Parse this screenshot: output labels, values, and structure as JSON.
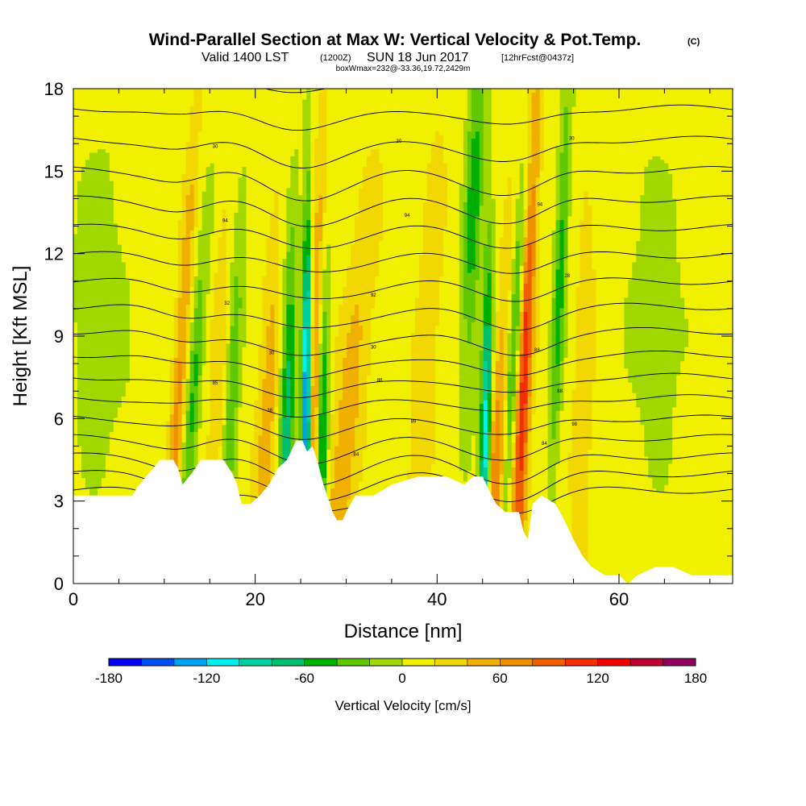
{
  "header": {
    "title": "Wind-Parallel Section at Max W: Vertical Velocity & Pot.Temp.",
    "copyright": "(C)",
    "valid_prefix": "Valid 1400 LST",
    "valid_z": "(1200Z)",
    "valid_date": "SUN 18 Jun 2017",
    "forecast": "[12hrFcst@0437z]",
    "box_info": "boxWmax=232@-33.36,19.72,2429m"
  },
  "colors": {
    "background": "#ffffff",
    "terrain": "#ffffff",
    "contour_line": "#000000"
  },
  "chart_data": {
    "type": "heatmap",
    "title": "Wind-Parallel Section at Max W: Vertical Velocity & Pot.Temp.",
    "xlabel": "Distance [nm]",
    "ylabel": "Height [Kft MSL]",
    "xlim": [
      0,
      72.5
    ],
    "ylim": [
      0,
      18
    ],
    "x_ticks": [
      0,
      20,
      40,
      60
    ],
    "y_ticks": [
      0,
      3,
      6,
      9,
      12,
      15,
      18
    ],
    "x_minor_step": 5,
    "y_minor_step": 1,
    "colorbar": {
      "label": "Vertical Velocity [cm/s]",
      "min": -180,
      "max": 180,
      "step": 20,
      "tick_values": [
        -180,
        -120,
        -60,
        0,
        60,
        120,
        180
      ],
      "tick_labels": [
        "-180",
        "-120",
        "-60",
        "0",
        "60",
        "120",
        "180"
      ],
      "colors": [
        "#0000f0",
        "#0050f0",
        "#00a0f0",
        "#00f0f0",
        "#00d0a0",
        "#00c070",
        "#00b000",
        "#60c800",
        "#a0d800",
        "#f0f000",
        "#f0d800",
        "#f0b000",
        "#f09000",
        "#f06000",
        "#f03000",
        "#f00000",
        "#c00030",
        "#900060"
      ]
    },
    "background_w": 10,
    "updrafts": [
      {
        "x": 11.5,
        "z0": 6.5,
        "tilt": 0.18,
        "sigma": 0.55,
        "amp": 55
      },
      {
        "x": 15.5,
        "z0": 4.5,
        "tilt": 0.12,
        "sigma": 0.6,
        "amp": 30
      },
      {
        "x": 21.0,
        "z0": 3.5,
        "tilt": 0.14,
        "sigma": 0.8,
        "amp": 45
      },
      {
        "x": 26.5,
        "z0": 5.0,
        "tilt": 0.08,
        "sigma": 0.55,
        "amp": 90
      },
      {
        "x": 29.5,
        "z0": 3.8,
        "tilt": 0.3,
        "sigma": 1.2,
        "amp": 45
      },
      {
        "x": 38.5,
        "z0": 7.0,
        "tilt": 0.18,
        "sigma": 0.9,
        "amp": 30
      },
      {
        "x": 46.5,
        "z0": 3.5,
        "tilt": 0.22,
        "sigma": 0.8,
        "amp": 80
      },
      {
        "x": 49.5,
        "z0": 7.5,
        "tilt": 0.12,
        "sigma": 0.6,
        "amp": 110
      },
      {
        "x": 56.0,
        "z0": 6.0,
        "tilt": 0.08,
        "sigma": 0.8,
        "amp": 25
      }
    ],
    "downdrafts": [
      {
        "x": 13.0,
        "z0": 6.0,
        "tilt": 0.22,
        "sigma": 0.55,
        "amp": 55
      },
      {
        "x": 17.5,
        "z0": 7.0,
        "tilt": 0.14,
        "sigma": 0.55,
        "amp": 45
      },
      {
        "x": 23.5,
        "z0": 6.0,
        "tilt": 0.08,
        "sigma": 0.6,
        "amp": 80
      },
      {
        "x": 25.6,
        "z0": 6.0,
        "tilt": 0.02,
        "sigma": 0.35,
        "amp": 170
      },
      {
        "x": 27.2,
        "z0": 4.5,
        "tilt": 0.05,
        "sigma": 0.5,
        "amp": 110
      },
      {
        "x": 45.3,
        "z0": 4.5,
        "tilt": 0.05,
        "sigma": 0.4,
        "amp": 130
      },
      {
        "x": 48.5,
        "z0": 9.0,
        "tilt": 0.18,
        "sigma": 0.6,
        "amp": 100
      },
      {
        "x": 44.0,
        "z0": 14.0,
        "tilt": 0.1,
        "sigma": 0.7,
        "amp": 60
      },
      {
        "x": 53.5,
        "z0": 11.0,
        "tilt": 0.12,
        "sigma": 0.5,
        "amp": 60
      },
      {
        "x": 3.0,
        "z0": 10.0,
        "tilt": 0.0,
        "sigma": 2.5,
        "amp": 20
      },
      {
        "x": 64.0,
        "z0": 10.0,
        "tilt": 0.0,
        "sigma": 2.5,
        "amp": 18
      }
    ],
    "terrain": [
      {
        "x": 0,
        "z": 3.2
      },
      {
        "x": 6.5,
        "z": 3.2
      },
      {
        "x": 7.0,
        "z": 3.5
      },
      {
        "x": 8.0,
        "z": 3.9
      },
      {
        "x": 8.8,
        "z": 4.2
      },
      {
        "x": 9.5,
        "z": 4.5
      },
      {
        "x": 11.0,
        "z": 4.5
      },
      {
        "x": 11.5,
        "z": 4.2
      },
      {
        "x": 12.0,
        "z": 3.6
      },
      {
        "x": 13.0,
        "z": 4.0
      },
      {
        "x": 14.0,
        "z": 4.5
      },
      {
        "x": 16.5,
        "z": 4.5
      },
      {
        "x": 17.5,
        "z": 4.0
      },
      {
        "x": 18.0,
        "z": 3.6
      },
      {
        "x": 18.5,
        "z": 2.9
      },
      {
        "x": 19.5,
        "z": 2.9
      },
      {
        "x": 20.5,
        "z": 3.2
      },
      {
        "x": 21.5,
        "z": 3.6
      },
      {
        "x": 22.5,
        "z": 4.2
      },
      {
        "x": 23.5,
        "z": 4.5
      },
      {
        "x": 24.5,
        "z": 5.2
      },
      {
        "x": 25.2,
        "z": 5.2
      },
      {
        "x": 25.7,
        "z": 4.8
      },
      {
        "x": 26.3,
        "z": 5.0
      },
      {
        "x": 26.8,
        "z": 4.5
      },
      {
        "x": 27.5,
        "z": 3.6
      },
      {
        "x": 28.5,
        "z": 2.6
      },
      {
        "x": 29.0,
        "z": 2.3
      },
      {
        "x": 29.6,
        "z": 2.3
      },
      {
        "x": 30.0,
        "z": 2.6
      },
      {
        "x": 31.0,
        "z": 3.2
      },
      {
        "x": 33.0,
        "z": 3.2
      },
      {
        "x": 35.0,
        "z": 3.6
      },
      {
        "x": 38.0,
        "z": 3.9
      },
      {
        "x": 41.0,
        "z": 3.9
      },
      {
        "x": 43.0,
        "z": 3.6
      },
      {
        "x": 44.0,
        "z": 3.9
      },
      {
        "x": 45.0,
        "z": 3.9
      },
      {
        "x": 46.0,
        "z": 3.2
      },
      {
        "x": 46.5,
        "z": 2.9
      },
      {
        "x": 47.5,
        "z": 2.6
      },
      {
        "x": 49.0,
        "z": 2.6
      },
      {
        "x": 49.5,
        "z": 1.9
      },
      {
        "x": 50.0,
        "z": 1.6
      },
      {
        "x": 50.5,
        "z": 2.9
      },
      {
        "x": 51.5,
        "z": 3.2
      },
      {
        "x": 53.0,
        "z": 2.9
      },
      {
        "x": 54.0,
        "z": 2.3
      },
      {
        "x": 55.0,
        "z": 1.6
      },
      {
        "x": 56.0,
        "z": 1.0
      },
      {
        "x": 57.0,
        "z": 0.6
      },
      {
        "x": 58.5,
        "z": 0.3
      },
      {
        "x": 60.0,
        "z": 0.3
      },
      {
        "x": 61.0,
        "z": 0.0
      },
      {
        "x": 62.0,
        "z": 0.3
      },
      {
        "x": 64.0,
        "z": 0.6
      },
      {
        "x": 66.0,
        "z": 0.6
      },
      {
        "x": 68.0,
        "z": 0.3
      },
      {
        "x": 72.5,
        "z": 0.3
      }
    ],
    "isentropes": {
      "count": 28,
      "base": 3.4,
      "spacing": 0.58,
      "growth": 0.018,
      "waves": [
        {
          "x": 12.0,
          "amp": -0.35,
          "width": 3.0
        },
        {
          "x": 24.0,
          "amp": -0.55,
          "width": 3.5
        },
        {
          "x": 29.0,
          "amp": -0.45,
          "width": 4.0
        },
        {
          "x": 46.0,
          "amp": -0.5,
          "width": 3.5
        },
        {
          "x": 50.0,
          "amp": -0.4,
          "width": 3.0
        }
      ]
    },
    "contour_labels": [
      {
        "text": "30",
        "x": 15.6,
        "z": 15.9
      },
      {
        "text": "30",
        "x": 35.8,
        "z": 16.1
      },
      {
        "text": "30",
        "x": 54.8,
        "z": 16.2
      },
      {
        "text": "94",
        "x": 16.7,
        "z": 13.2
      },
      {
        "text": "94",
        "x": 36.7,
        "z": 13.4
      },
      {
        "text": "94",
        "x": 51.3,
        "z": 13.8
      },
      {
        "text": "32",
        "x": 16.9,
        "z": 10.2
      },
      {
        "text": "92",
        "x": 33.0,
        "z": 10.5
      },
      {
        "text": "28",
        "x": 54.3,
        "z": 11.2
      },
      {
        "text": "30",
        "x": 21.8,
        "z": 8.4
      },
      {
        "text": "30",
        "x": 33.0,
        "z": 8.6
      },
      {
        "text": "88",
        "x": 51.0,
        "z": 8.5
      },
      {
        "text": "85",
        "x": 15.6,
        "z": 7.3
      },
      {
        "text": "88",
        "x": 33.7,
        "z": 7.4
      },
      {
        "text": "88",
        "x": 53.5,
        "z": 7.0
      },
      {
        "text": "38",
        "x": 21.6,
        "z": 6.3
      },
      {
        "text": "89",
        "x": 37.4,
        "z": 5.9
      },
      {
        "text": "98",
        "x": 55.1,
        "z": 5.8
      },
      {
        "text": "84",
        "x": 31.1,
        "z": 4.7
      },
      {
        "text": "84",
        "x": 51.8,
        "z": 5.1
      }
    ]
  }
}
